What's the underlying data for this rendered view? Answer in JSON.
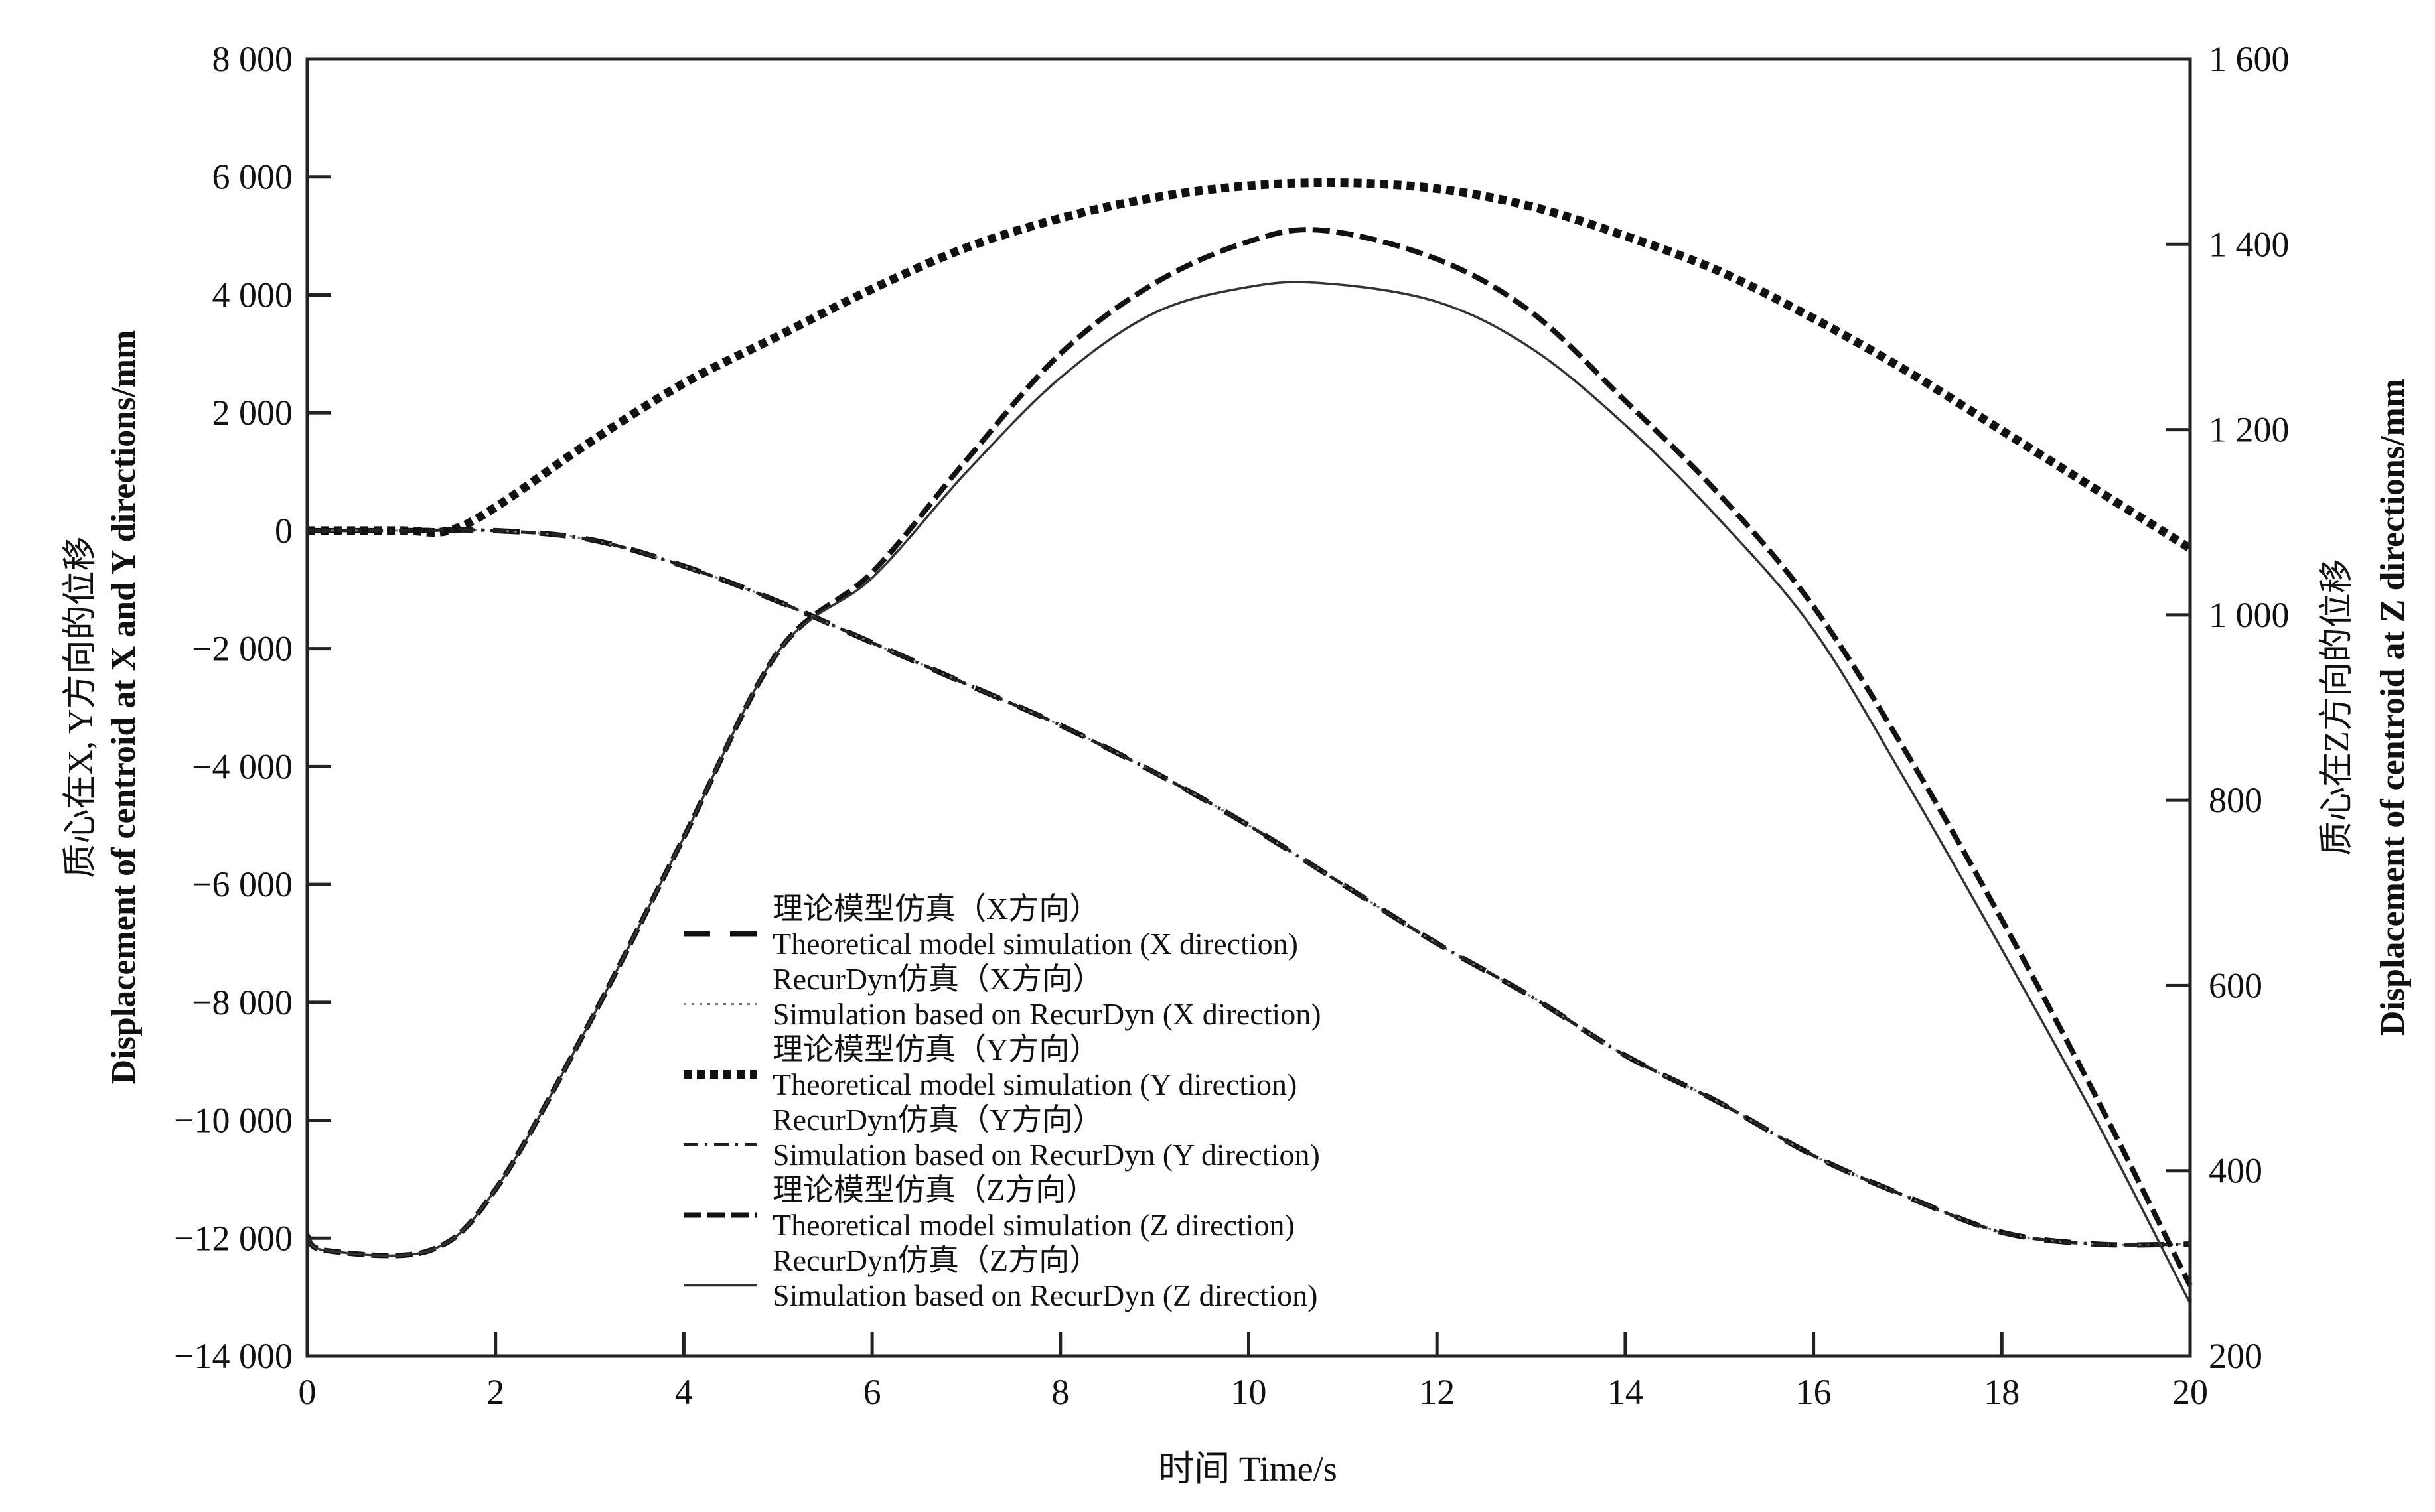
{
  "chart_data": {
    "type": "line",
    "xlabel": "时间 Time/s",
    "ylabel_left": [
      "质心在X, Y方向的位移",
      "Displacement of centroid at X and Y directions/mm"
    ],
    "ylabel_right": [
      "质心在Z方向的位移",
      "Displacement of centroid at Z directions/mm"
    ],
    "xlim": [
      0,
      20
    ],
    "ylim_left": [
      -14000,
      8000
    ],
    "ylim_right": [
      200,
      1600
    ],
    "x_ticks": [
      0,
      2,
      4,
      6,
      8,
      10,
      12,
      14,
      16,
      18,
      20
    ],
    "x_tick_labels": [
      "0",
      "2",
      "4",
      "6",
      "8",
      "10",
      "12",
      "14",
      "16",
      "18",
      "20"
    ],
    "y_left_ticks": [
      8000,
      6000,
      4000,
      2000,
      0,
      -2000,
      -4000,
      -6000,
      -8000,
      -10000,
      -12000,
      -14000
    ],
    "y_left_tick_labels": [
      "8 000",
      "6 000",
      "4 000",
      "2 000",
      "0",
      "−2 000",
      "−4 000",
      "−6 000",
      "−8 000",
      "−10 000",
      "−12 000",
      "−14 000"
    ],
    "y_right_ticks": [
      1600,
      1400,
      1200,
      1000,
      800,
      600,
      400,
      200
    ],
    "y_right_tick_labels": [
      "1 600",
      "1 400",
      "1 200",
      "1 000",
      "800",
      "600",
      "400",
      "200"
    ],
    "grid": false,
    "legend_position": "lower-center",
    "series": [
      {
        "name": [
          "理论模型仿真（X方向）",
          "Theoretical model simulation (X direction)"
        ],
        "axis": "left",
        "style": "long-dash",
        "x": [
          0,
          1,
          2,
          3,
          4,
          5,
          6,
          7,
          8,
          9,
          10,
          11,
          12,
          13,
          14,
          15,
          16,
          17,
          18,
          19,
          20
        ],
        "y": [
          0,
          0,
          0,
          -150,
          -600,
          -1200,
          -1900,
          -2600,
          -3300,
          -4100,
          -5000,
          -6000,
          -7000,
          -7900,
          -8900,
          -9700,
          -10600,
          -11300,
          -11900,
          -12100,
          -12100
        ]
      },
      {
        "name": [
          "RecurDyn仿真（X方向）",
          "Simulation based on RecurDyn (X direction)"
        ],
        "axis": "left",
        "style": "dotted",
        "x": [
          0,
          1,
          2,
          3,
          4,
          5,
          6,
          7,
          8,
          9,
          10,
          11,
          12,
          13,
          14,
          15,
          16,
          17,
          18,
          19,
          20
        ],
        "y": [
          0,
          0,
          0,
          -150,
          -600,
          -1200,
          -1900,
          -2600,
          -3300,
          -4100,
          -5000,
          -6000,
          -7000,
          -7900,
          -8900,
          -9700,
          -10600,
          -11300,
          -11900,
          -12100,
          -12100
        ]
      },
      {
        "name": [
          "理论模型仿真（Y方向）",
          "Theoretical model simulation (Y direction)"
        ],
        "axis": "left",
        "style": "thick-dotted",
        "x": [
          0,
          1,
          1.5,
          2,
          3,
          4,
          5,
          6,
          7,
          8,
          9,
          10,
          11,
          12,
          13,
          14,
          15,
          16,
          17,
          18,
          19,
          20
        ],
        "y": [
          0,
          0,
          0,
          400,
          1500,
          2500,
          3300,
          4100,
          4800,
          5300,
          5650,
          5850,
          5900,
          5800,
          5500,
          5000,
          4400,
          3600,
          2700,
          1700,
          700,
          -300
        ]
      },
      {
        "name": [
          "RecurDyn仿真（Y方向）",
          "Simulation based on RecurDyn (Y direction)"
        ],
        "axis": "left",
        "style": "dash-dot",
        "x": [
          0,
          1,
          2,
          3,
          4,
          5,
          6,
          7,
          8,
          9,
          10,
          11,
          12,
          13,
          14,
          15,
          16,
          17,
          18,
          19,
          20
        ],
        "y": [
          0,
          0,
          0,
          -150,
          -600,
          -1200,
          -1900,
          -2600,
          -3300,
          -4100,
          -5000,
          -6000,
          -7000,
          -7900,
          -8900,
          -9700,
          -10600,
          -11300,
          -11900,
          -12100,
          -12100
        ]
      },
      {
        "name": [
          "理论模型仿真（Z方向）",
          "Theoretical model simulation (Z direction)"
        ],
        "axis": "right",
        "style": "dash",
        "x": [
          0,
          0.2,
          1.3,
          2,
          3,
          4,
          5,
          6,
          7,
          8,
          9,
          10,
          10.8,
          12,
          13,
          14,
          15,
          16,
          17,
          18,
          19,
          20
        ],
        "y": [
          330,
          314,
          314,
          380,
          560,
          760,
          960,
          1046,
          1167,
          1282,
          1358,
          1403,
          1415,
          1384,
          1327,
          1231,
          1130,
          1009,
          849,
          671,
          480,
          276
        ]
      },
      {
        "name": [
          "RecurDyn仿真（Z方向）",
          "Simulation based on RecurDyn (Z direction)"
        ],
        "axis": "right",
        "style": "solid-thin",
        "x": [
          0,
          0.2,
          1.3,
          2,
          3,
          4,
          5,
          6,
          7,
          8,
          9,
          10,
          10.8,
          12,
          13,
          14,
          15,
          16,
          17,
          18,
          19,
          20
        ],
        "y": [
          330,
          314,
          314,
          380,
          560,
          760,
          960,
          1040,
          1154,
          1256,
          1326,
          1354,
          1358,
          1338,
          1288,
          1205,
          1103,
          984,
          817,
          639,
          455,
          257
        ]
      }
    ]
  }
}
